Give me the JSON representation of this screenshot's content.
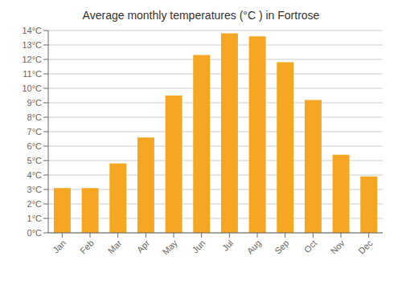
{
  "chart_data": {
    "type": "bar",
    "title": "Average monthly temperatures (°C ) in Fortrose",
    "categories": [
      "Jan",
      "Feb",
      "Mar",
      "Apr",
      "May",
      "Jun",
      "Jul",
      "Aug",
      "Sep",
      "Oct",
      "Nov",
      "Dec"
    ],
    "values": [
      3.1,
      3.1,
      4.8,
      6.6,
      9.5,
      12.3,
      13.8,
      13.6,
      11.8,
      9.2,
      5.4,
      3.9
    ],
    "color": "#F5A623",
    "ylim": [
      0,
      14
    ],
    "yticks": [
      {
        "value": 0,
        "label": "0°C"
      },
      {
        "value": 1,
        "label": "1°C"
      },
      {
        "value": 2,
        "label": "2°C"
      },
      {
        "value": 3,
        "label": "3°C"
      },
      {
        "value": 4,
        "label": "4°C"
      },
      {
        "value": 5,
        "label": "5°C"
      },
      {
        "value": 6,
        "label": "6°C"
      },
      {
        "value": 7,
        "label": "7°C"
      },
      {
        "value": 8,
        "label": "8°C"
      },
      {
        "value": 9,
        "label": "9°C"
      },
      {
        "value": 10,
        "label": "10°C"
      },
      {
        "value": 11,
        "label": "11°C"
      },
      {
        "value": 12,
        "label": "12°C"
      },
      {
        "value": 13,
        "label": "13°C"
      },
      {
        "value": 14,
        "label": "14°C"
      }
    ],
    "grid": true
  }
}
